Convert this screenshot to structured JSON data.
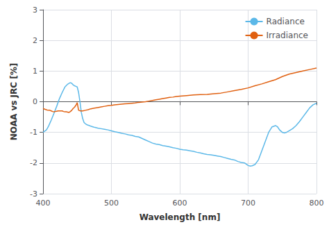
{
  "chart_data": {
    "type": "line",
    "xlabel": "Wavelength [nm]",
    "ylabel": "NOAA vs JRC [%]",
    "xlim": [
      400,
      800
    ],
    "ylim": [
      -3,
      3
    ],
    "xticks": [
      400,
      500,
      600,
      700,
      800
    ],
    "yticks": [
      -3,
      -2,
      -1,
      0,
      1,
      2,
      3
    ],
    "grid": true,
    "legend": "upper right",
    "series": [
      {
        "name": "Radiance",
        "color": "#5BB8E8",
        "x": [
          400,
          405,
          408,
          412,
          416,
          420,
          424,
          428,
          432,
          436,
          438,
          440,
          442,
          444,
          446,
          448,
          450,
          452,
          454,
          456,
          458,
          460,
          462,
          465,
          468,
          470,
          473,
          476,
          480,
          485,
          490,
          495,
          500,
          505,
          510,
          515,
          520,
          525,
          530,
          535,
          540,
          545,
          550,
          555,
          560,
          565,
          570,
          575,
          580,
          585,
          590,
          595,
          600,
          605,
          610,
          615,
          620,
          625,
          630,
          635,
          640,
          645,
          650,
          655,
          660,
          665,
          670,
          675,
          680,
          685,
          690,
          695,
          700,
          703,
          706,
          710,
          715,
          720,
          725,
          730,
          735,
          740,
          743,
          746,
          750,
          753,
          756,
          760,
          765,
          770,
          775,
          780,
          785,
          790,
          795,
          800
        ],
        "values": [
          -1.0,
          -0.92,
          -0.8,
          -0.6,
          -0.38,
          -0.15,
          0.1,
          0.3,
          0.48,
          0.57,
          0.6,
          0.62,
          0.6,
          0.55,
          0.52,
          0.5,
          0.48,
          0.3,
          0.0,
          -0.35,
          -0.55,
          -0.68,
          -0.72,
          -0.76,
          -0.78,
          -0.8,
          -0.82,
          -0.84,
          -0.86,
          -0.88,
          -0.9,
          -0.92,
          -0.95,
          -0.98,
          -1.0,
          -1.03,
          -1.05,
          -1.08,
          -1.1,
          -1.13,
          -1.15,
          -1.2,
          -1.25,
          -1.3,
          -1.35,
          -1.38,
          -1.4,
          -1.43,
          -1.45,
          -1.47,
          -1.5,
          -1.52,
          -1.55,
          -1.57,
          -1.58,
          -1.6,
          -1.62,
          -1.65,
          -1.67,
          -1.7,
          -1.72,
          -1.73,
          -1.75,
          -1.77,
          -1.79,
          -1.82,
          -1.85,
          -1.88,
          -1.9,
          -1.95,
          -1.98,
          -2.0,
          -2.08,
          -2.1,
          -2.09,
          -2.05,
          -1.9,
          -1.6,
          -1.3,
          -1.0,
          -0.82,
          -0.78,
          -0.82,
          -0.92,
          -1.0,
          -1.02,
          -1.0,
          -0.95,
          -0.88,
          -0.78,
          -0.65,
          -0.5,
          -0.35,
          -0.2,
          -0.1,
          -0.05
        ]
      },
      {
        "name": "Irradiance",
        "color": "#E06010",
        "x": [
          400,
          403,
          406,
          408,
          410,
          412,
          414,
          416,
          418,
          420,
          422,
          424,
          426,
          428,
          430,
          432,
          434,
          436,
          438,
          440,
          442,
          444,
          446,
          448,
          450,
          452,
          455,
          458,
          462,
          466,
          470,
          475,
          480,
          485,
          490,
          495,
          500,
          505,
          510,
          515,
          520,
          525,
          530,
          535,
          540,
          545,
          550,
          555,
          560,
          565,
          570,
          575,
          580,
          585,
          590,
          595,
          600,
          610,
          620,
          630,
          640,
          650,
          660,
          670,
          680,
          690,
          700,
          710,
          720,
          730,
          740,
          750,
          760,
          770,
          780,
          790,
          800
        ],
        "values": [
          -0.22,
          -0.25,
          -0.27,
          -0.28,
          -0.28,
          -0.3,
          -0.32,
          -0.33,
          -0.32,
          -0.31,
          -0.3,
          -0.3,
          -0.3,
          -0.3,
          -0.32,
          -0.33,
          -0.33,
          -0.34,
          -0.35,
          -0.32,
          -0.28,
          -0.22,
          -0.18,
          -0.12,
          -0.03,
          -0.28,
          -0.3,
          -0.3,
          -0.28,
          -0.26,
          -0.23,
          -0.21,
          -0.19,
          -0.17,
          -0.15,
          -0.13,
          -0.12,
          -0.1,
          -0.09,
          -0.08,
          -0.07,
          -0.06,
          -0.05,
          -0.04,
          -0.02,
          -0.01,
          0.0,
          0.02,
          0.04,
          0.06,
          0.08,
          0.1,
          0.12,
          0.14,
          0.15,
          0.17,
          0.18,
          0.2,
          0.22,
          0.23,
          0.24,
          0.26,
          0.28,
          0.32,
          0.36,
          0.4,
          0.45,
          0.52,
          0.58,
          0.65,
          0.72,
          0.82,
          0.9,
          0.95,
          1.0,
          1.05,
          1.1
        ]
      }
    ]
  }
}
